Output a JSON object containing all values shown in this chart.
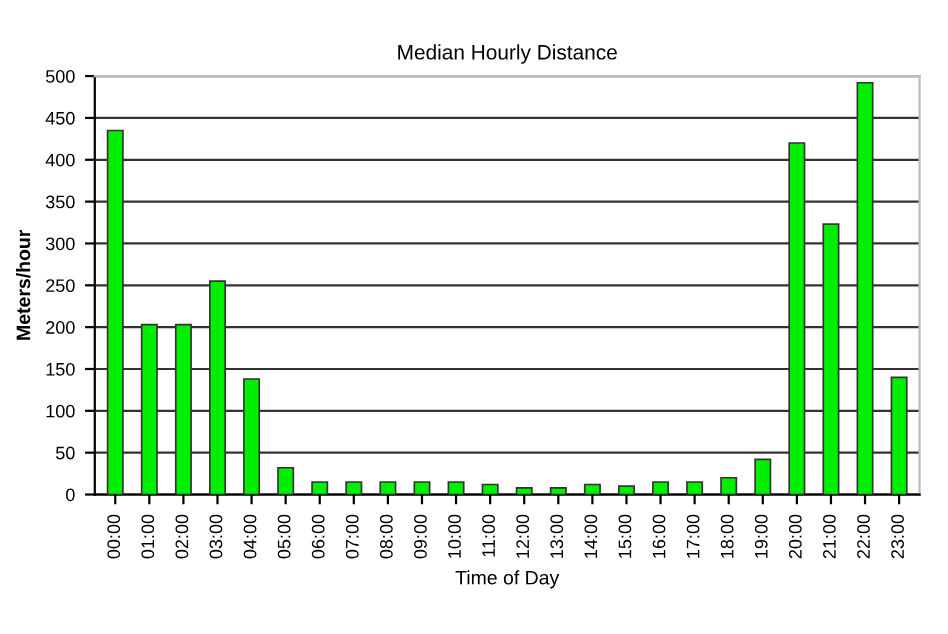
{
  "chart_data": {
    "type": "bar",
    "title": "Median Hourly Distance",
    "xlabel": "Time of Day",
    "ylabel": "Meters/hour",
    "categories": [
      "00:00",
      "01:00",
      "02:00",
      "03:00",
      "04:00",
      "05:00",
      "06:00",
      "07:00",
      "08:00",
      "09:00",
      "10:00",
      "11:00",
      "12:00",
      "13:00",
      "14:00",
      "15:00",
      "16:00",
      "17:00",
      "18:00",
      "19:00",
      "20:00",
      "21:00",
      "22:00",
      "23:00"
    ],
    "values": [
      435,
      203,
      203,
      255,
      138,
      32,
      15,
      15,
      15,
      15,
      15,
      12,
      8,
      8,
      12,
      10,
      15,
      15,
      20,
      42,
      420,
      323,
      492,
      140
    ],
    "color": "#00ee00",
    "ylim": [
      0,
      500
    ],
    "yticks": [
      0,
      50,
      100,
      150,
      200,
      250,
      300,
      350,
      400,
      450,
      500
    ],
    "grid": "y"
  }
}
